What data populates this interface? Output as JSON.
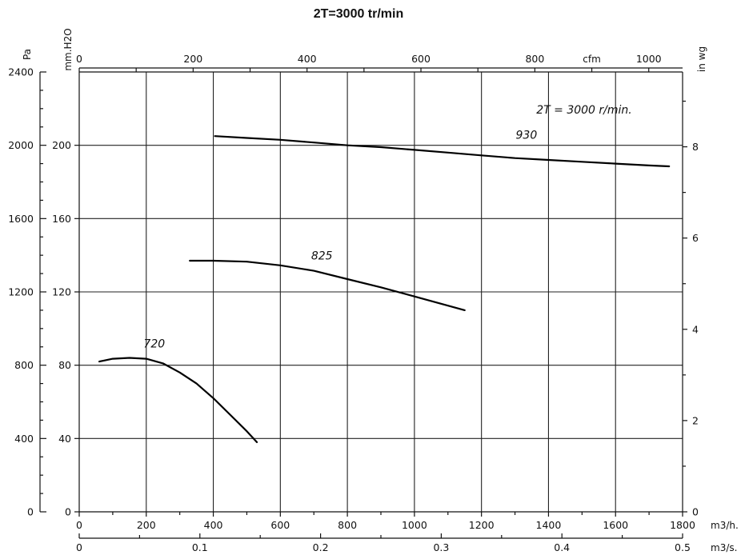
{
  "chart_data": {
    "type": "line",
    "title": "2T=3000 tr/min",
    "annotation": "2T = 3000 r/min.",
    "x_axes": {
      "m3h": {
        "unit": "m3/h.",
        "range": [
          0,
          1800
        ],
        "ticks": [
          "0",
          "200",
          "400",
          "600",
          "800",
          "1000",
          "1200",
          "1400",
          "1600",
          "1800"
        ]
      },
      "m3s": {
        "unit": "m3/s.",
        "range": [
          0,
          0.5
        ],
        "ticks": [
          "0",
          "0.1",
          "0.2",
          "0.3",
          "0.4",
          "0.5"
        ]
      },
      "cfm": {
        "unit": "cfm",
        "range": [
          0,
          1059.4
        ],
        "ticks": [
          "0",
          "200",
          "400",
          "600",
          "800",
          "1000"
        ]
      }
    },
    "y_axes": {
      "pa": {
        "unit": "Pa",
        "range": [
          0,
          2400
        ],
        "ticks": [
          "0",
          "400",
          "800",
          "1200",
          "1600",
          "2000",
          "2400"
        ]
      },
      "mmh2o": {
        "unit": "mm.H2O",
        "range": [
          0,
          240
        ],
        "ticks": [
          "0",
          "40",
          "80",
          "120",
          "160",
          "200"
        ]
      },
      "inwg": {
        "unit": "in wg",
        "range": [
          0,
          9.64
        ],
        "ticks": [
          "0",
          "2",
          "4",
          "6",
          "8"
        ]
      }
    },
    "grid": true,
    "series": [
      {
        "name": "720",
        "x": [
          60,
          100,
          150,
          200,
          250,
          300,
          350,
          400,
          450,
          500,
          530
        ],
        "y": [
          820,
          835,
          840,
          835,
          810,
          760,
          700,
          620,
          530,
          440,
          380
        ]
      },
      {
        "name": "825",
        "x": [
          330,
          400,
          500,
          600,
          700,
          800,
          900,
          1000,
          1100,
          1150
        ],
        "y": [
          1370,
          1370,
          1365,
          1345,
          1315,
          1270,
          1225,
          1175,
          1125,
          1100
        ]
      },
      {
        "name": "930",
        "x": [
          405,
          500,
          600,
          700,
          800,
          900,
          1000,
          1100,
          1200,
          1300,
          1400,
          1500,
          1600,
          1700,
          1760
        ],
        "y": [
          2050,
          2040,
          2030,
          2015,
          2000,
          1990,
          1975,
          1960,
          1945,
          1930,
          1920,
          1910,
          1900,
          1890,
          1885
        ]
      }
    ]
  }
}
